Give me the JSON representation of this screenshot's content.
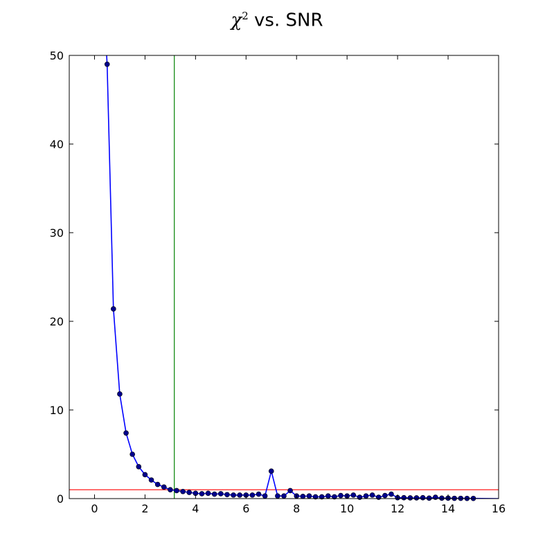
{
  "title": {
    "symbol": "χ",
    "superscript": "2",
    "text": " vs. SNR"
  },
  "chart_data": {
    "type": "line",
    "title": "χ² vs. SNR",
    "xlabel": "",
    "ylabel": "",
    "xlim": [
      -1,
      16
    ],
    "ylim": [
      0,
      50
    ],
    "x_ticks": [
      0,
      2,
      4,
      6,
      8,
      10,
      12,
      14,
      16
    ],
    "y_ticks": [
      0,
      10,
      20,
      30,
      40,
      50
    ],
    "grid": false,
    "legend": "none",
    "series": [
      {
        "color": "#0000ff",
        "marker": "circle",
        "x_start_of_line": [
          0.48,
          50
        ],
        "x": [
          0.5,
          0.75,
          1.0,
          1.25,
          1.5,
          1.75,
          2.0,
          2.25,
          2.5,
          2.75,
          3.0,
          3.25,
          3.5,
          3.75,
          4.0,
          4.25,
          4.5,
          4.75,
          5.0,
          5.25,
          5.5,
          5.75,
          6.0,
          6.25,
          6.5,
          6.75,
          7.0,
          7.25,
          7.5,
          7.75,
          8.0,
          8.25,
          8.5,
          8.75,
          9.0,
          9.25,
          9.5,
          9.75,
          10.0,
          10.25,
          10.5,
          10.75,
          11.0,
          11.25,
          11.5,
          11.75,
          12.0,
          12.25,
          12.5,
          12.75,
          13.0,
          13.25,
          13.5,
          13.75,
          14.0,
          14.25,
          14.5,
          14.75,
          15.0
        ],
        "y": [
          49.0,
          21.4,
          11.8,
          7.4,
          5.0,
          3.6,
          2.7,
          2.1,
          1.6,
          1.3,
          1.0,
          0.9,
          0.8,
          0.7,
          0.6,
          0.55,
          0.6,
          0.5,
          0.55,
          0.45,
          0.4,
          0.4,
          0.4,
          0.4,
          0.5,
          0.3,
          3.1,
          0.3,
          0.3,
          0.9,
          0.3,
          0.25,
          0.3,
          0.2,
          0.2,
          0.3,
          0.2,
          0.35,
          0.3,
          0.4,
          0.15,
          0.3,
          0.4,
          0.15,
          0.35,
          0.5,
          0.1,
          0.1,
          0.08,
          0.08,
          0.1,
          0.05,
          0.15,
          0.05,
          0.05,
          0.03,
          0.03,
          0.02,
          0.02
        ],
        "line_end": [
          16,
          0
        ]
      }
    ],
    "reference_lines": [
      {
        "orientation": "horizontal",
        "value": 1.0,
        "color": "#ff0000"
      },
      {
        "orientation": "vertical",
        "value": 3.16,
        "color": "#008000"
      }
    ]
  }
}
